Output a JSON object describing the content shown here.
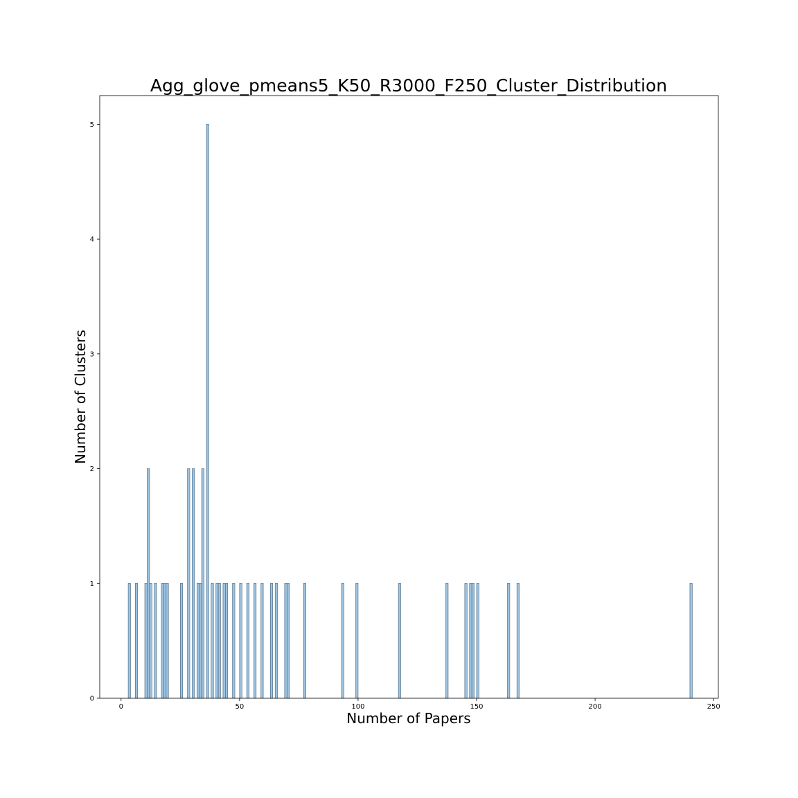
{
  "chart_data": {
    "type": "bar",
    "title": "Agg_glove_pmeans5_K50_R3000_F250_Cluster_Distribution",
    "xlabel": "Number of Papers",
    "ylabel": "Number of Clusters",
    "xlim": [
      -9,
      252
    ],
    "ylim": [
      0,
      5.25
    ],
    "bin_width": 1,
    "xticks": [
      0,
      50,
      100,
      150,
      200,
      250
    ],
    "yticks": [
      0,
      1,
      2,
      3,
      4,
      5
    ],
    "grid": false,
    "x": [
      3,
      6,
      10,
      11,
      12,
      14,
      17,
      18,
      19,
      25,
      28,
      30,
      32,
      33,
      34,
      36,
      38,
      40,
      41,
      43,
      44,
      47,
      50,
      53,
      56,
      59,
      63,
      65,
      69,
      70,
      77,
      93,
      99,
      117,
      137,
      145,
      147,
      148,
      150,
      163,
      167,
      240
    ],
    "values": [
      1,
      1,
      1,
      2,
      1,
      1,
      1,
      1,
      1,
      1,
      2,
      2,
      1,
      1,
      2,
      5,
      1,
      1,
      1,
      1,
      1,
      1,
      1,
      1,
      1,
      1,
      1,
      1,
      1,
      1,
      1,
      1,
      1,
      1,
      1,
      1,
      1,
      1,
      1,
      1,
      1,
      1
    ],
    "colors": {
      "bar_fill": "#9dc3e0",
      "bar_edge": "#3f5f7a"
    }
  }
}
